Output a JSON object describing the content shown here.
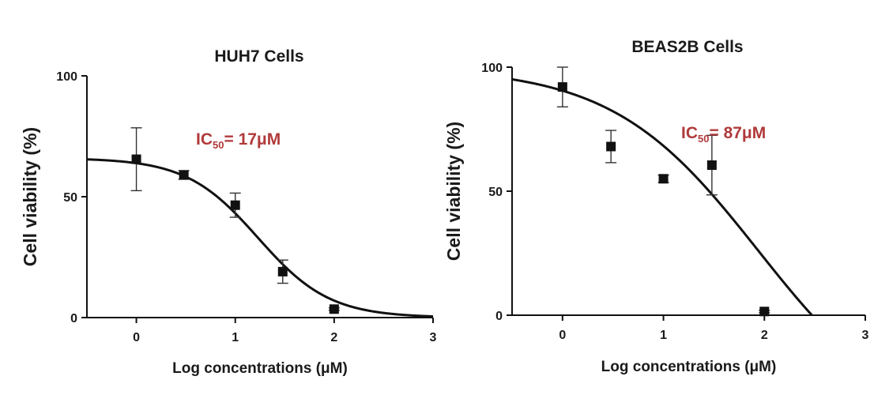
{
  "chart_data": [
    {
      "type": "scatter",
      "title": "HUH7 Cells",
      "xlabel": "Log concentrations (μM)",
      "ylabel": "Cell viability (%)",
      "xlim": [
        -0.5,
        3
      ],
      "ylim": [
        0,
        100
      ],
      "xticks": [
        "0",
        "1",
        "2",
        "3"
      ],
      "yticks": [
        "0",
        "50",
        "100"
      ],
      "annotation": {
        "main": "IC",
        "sub": "50",
        "rest": "= 17μM",
        "color": "#b03a3a"
      },
      "series": [
        {
          "points": [
            {
              "x": 0,
              "y": 65.5,
              "err": 13
            },
            {
              "x": 0.48,
              "y": 59,
              "err": 1.8
            },
            {
              "x": 1,
              "y": 46.5,
              "err": 5
            },
            {
              "x": 1.48,
              "y": 19,
              "err": 4.8
            },
            {
              "x": 2,
              "y": 3.5,
              "err": 0.5
            }
          ],
          "fit": {
            "model": "sigmoid",
            "top": 66,
            "bottom": 0,
            "logIC50": 1.23,
            "hill": 1.2
          }
        }
      ]
    },
    {
      "type": "scatter",
      "title": "BEAS2B Cells",
      "xlabel": "Log concentrations (μM)",
      "ylabel": "Cell viability (%)",
      "xlim": [
        -0.5,
        3
      ],
      "ylim": [
        0,
        100
      ],
      "xticks": [
        "0",
        "1",
        "2",
        "3"
      ],
      "yticks": [
        "0",
        "50",
        "100"
      ],
      "annotation": {
        "main": "IC",
        "sub": "50",
        "rest": "= 87μM",
        "color": "#b03a3a"
      },
      "series": [
        {
          "points": [
            {
              "x": 0,
              "y": 92,
              "err": 8
            },
            {
              "x": 0.48,
              "y": 68,
              "err": 6.5
            },
            {
              "x": 1,
              "y": 55,
              "err": 1.5
            },
            {
              "x": 1.48,
              "y": 60.5,
              "err": 12
            },
            {
              "x": 2,
              "y": 1.5,
              "err": 0.5
            }
          ],
          "fit": {
            "model": "sigmoid",
            "top": 100,
            "bottom": -48,
            "logIC50": 1.94,
            "hill": 0.6
          }
        }
      ]
    }
  ]
}
